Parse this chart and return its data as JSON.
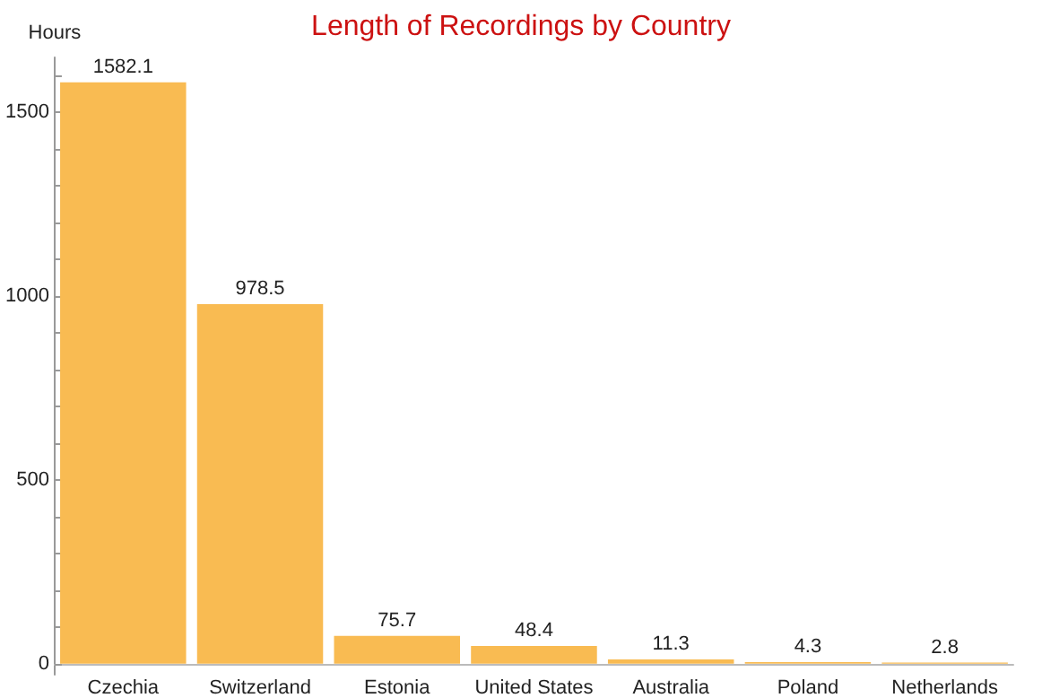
{
  "chart_data": {
    "type": "bar",
    "title": "Length of Recordings by Country",
    "ylabel": "Hours",
    "categories": [
      "Czechia",
      "Switzerland",
      "Estonia",
      "United States",
      "Australia",
      "Poland",
      "Netherlands"
    ],
    "values": [
      1582.1,
      978.5,
      75.7,
      48.4,
      11.3,
      4.3,
      2.8
    ],
    "color": "#f9bb52",
    "data_labels": true,
    "grid": false,
    "ylim": [
      -30,
      1650
    ],
    "yticks": [
      0,
      {
        "value": 100,
        "label": null
      },
      {
        "value": 200,
        "label": null
      },
      {
        "value": 300,
        "label": null
      },
      {
        "value": 400,
        "label": null
      },
      500,
      {
        "value": 600,
        "label": null
      },
      {
        "value": 700,
        "label": null
      },
      {
        "value": 800,
        "label": null
      },
      {
        "value": 900,
        "label": null
      },
      1000,
      {
        "value": 1100,
        "label": null
      },
      {
        "value": 1200,
        "label": null
      },
      {
        "value": 1300,
        "label": null
      },
      {
        "value": 1400,
        "label": null
      },
      1500,
      {
        "value": 1600,
        "label": null
      }
    ]
  }
}
